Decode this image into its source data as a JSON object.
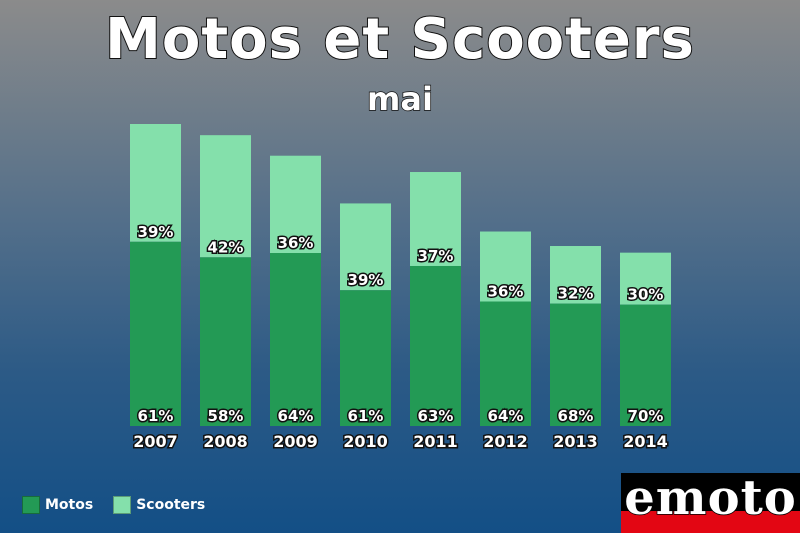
{
  "title": "Motos et Scooters",
  "subtitle": "mai",
  "colors": {
    "motos": "#239a55",
    "scooters": "#84e0ab"
  },
  "chart_data": {
    "type": "bar",
    "stacked": true,
    "categories": [
      "2007",
      "2008",
      "2009",
      "2010",
      "2011",
      "2012",
      "2013",
      "2014"
    ],
    "totals": [
      100,
      96.3,
      89.5,
      73.7,
      84.1,
      64.4,
      59.6,
      57.4
    ],
    "series": [
      {
        "name": "Motos",
        "percent": [
          61,
          58,
          64,
          61,
          63,
          64,
          68,
          70
        ],
        "labels": [
          "61%",
          "58%",
          "64%",
          "61%",
          "63%",
          "64%",
          "68%",
          "70%"
        ]
      },
      {
        "name": "Scooters",
        "percent": [
          39,
          42,
          36,
          39,
          37,
          36,
          32,
          30
        ],
        "labels": [
          "39%",
          "42%",
          "36%",
          "39%",
          "37%",
          "36%",
          "32%",
          "30%"
        ]
      }
    ],
    "legend": "bottom-left",
    "grid": false
  },
  "logo": {
    "text": "emoto"
  }
}
